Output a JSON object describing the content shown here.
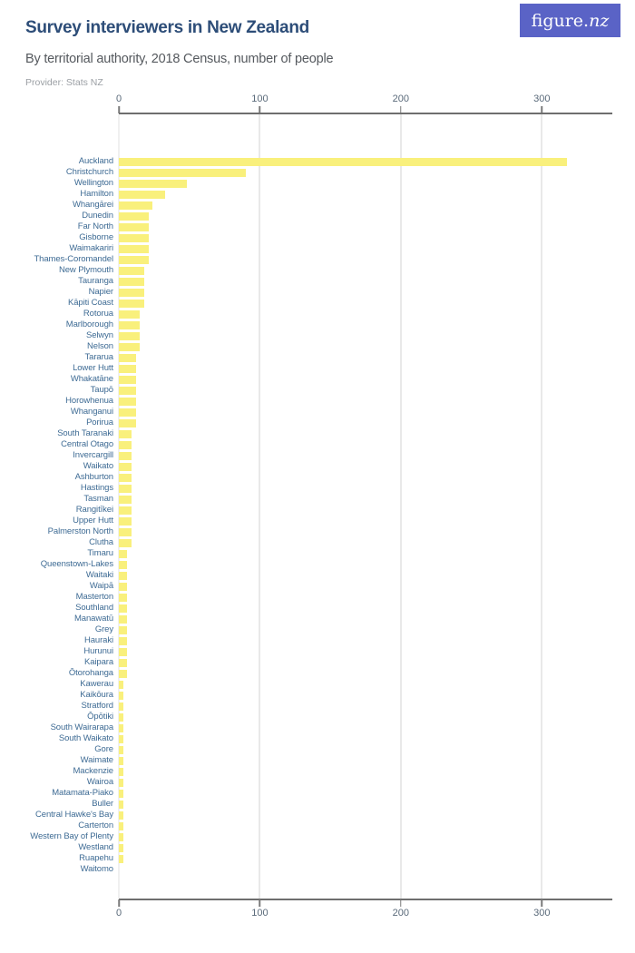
{
  "header": {
    "title": "Survey interviewers in New Zealand",
    "subtitle": "By territorial authority, 2018 Census, number of people",
    "provider": "Provider: Stats NZ",
    "logo_text_main": "figure.",
    "logo_text_suffix": "nz"
  },
  "colors": {
    "bar": "#f9f07c",
    "title": "#2d4d78",
    "row_label": "#3e6b94",
    "logo_background": "#5a63c6",
    "axis_line": "#6e6e6e",
    "gridline": "#e9e9e9",
    "tick_label": "#5a6a7a"
  },
  "chart_data": {
    "type": "bar",
    "orientation": "horizontal",
    "title": "Survey interviewers in New Zealand",
    "subtitle": "By territorial authority, 2018 Census, number of people",
    "xlabel": "number of people",
    "ylabel": "territorial authority",
    "xlim": [
      0,
      350
    ],
    "x_ticks": [
      0,
      100,
      200,
      300
    ],
    "grid": true,
    "categories": [
      "Auckland",
      "Christchurch",
      "Wellington",
      "Hamilton",
      "Whangārei",
      "Dunedin",
      "Far North",
      "Gisborne",
      "Waimakariri",
      "Thames-Coromandel",
      "New Plymouth",
      "Tauranga",
      "Napier",
      "Kāpiti Coast",
      "Rotorua",
      "Marlborough",
      "Selwyn",
      "Nelson",
      "Tararua",
      "Lower Hutt",
      "Whakatāne",
      "Taupō",
      "Horowhenua",
      "Whanganui",
      "Porirua",
      "South Taranaki",
      "Central Otago",
      "Invercargill",
      "Waikato",
      "Ashburton",
      "Hastings",
      "Tasman",
      "Rangitīkei",
      "Upper Hutt",
      "Palmerston North",
      "Clutha",
      "Timaru",
      "Queenstown-Lakes",
      "Waitaki",
      "Waipā",
      "Masterton",
      "Southland",
      "Manawatū",
      "Grey",
      "Hauraki",
      "Hurunui",
      "Kaipara",
      "Ōtorohanga",
      "Kawerau",
      "Kaikōura",
      "Stratford",
      "Ōpōtiki",
      "South Wairarapa",
      "South Waikato",
      "Gore",
      "Waimate",
      "Mackenzie",
      "Wairoa",
      "Matamata-Piako",
      "Buller",
      "Central Hawke's Bay",
      "Carterton",
      "Western Bay of Plenty",
      "Westland",
      "Ruapehu",
      "Waitomo"
    ],
    "values": [
      318,
      90,
      48,
      33,
      24,
      21,
      21,
      21,
      21,
      21,
      18,
      18,
      18,
      18,
      15,
      15,
      15,
      15,
      12,
      12,
      12,
      12,
      12,
      12,
      12,
      9,
      9,
      9,
      9,
      9,
      9,
      9,
      9,
      9,
      9,
      9,
      6,
      6,
      6,
      6,
      6,
      6,
      6,
      6,
      6,
      6,
      6,
      6,
      3,
      3,
      3,
      3,
      3,
      3,
      3,
      3,
      3,
      3,
      3,
      3,
      3,
      3,
      3,
      3,
      3,
      0
    ]
  }
}
